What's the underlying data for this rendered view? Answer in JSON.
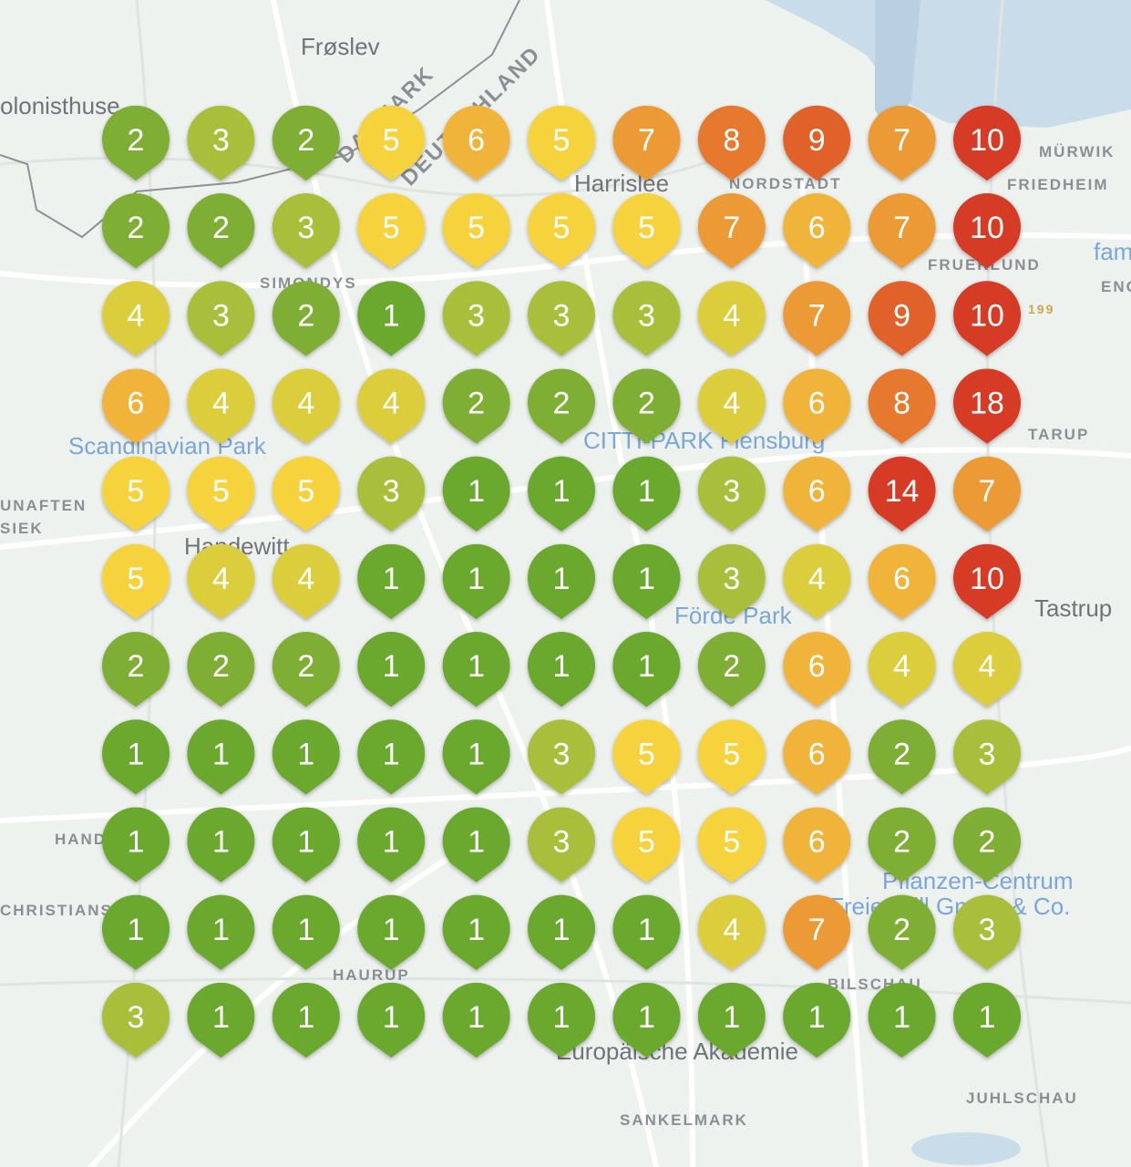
{
  "map_labels": {
    "froslev": "Frøslev",
    "kolonisthuse": "olonisthuse",
    "harrislee": "Harrislee",
    "nordstadt": "NORDSTADT",
    "murwik": "MÜRWIK",
    "friedheim": "FRIEDHEIM",
    "fruerlund": "FRUERLUND",
    "fam": "fam",
    "eng": "ENG",
    "simondys": "SIMONDYS",
    "tarup": "TARUP",
    "scandinavian_park": "Scandinavian Park",
    "citti_park": "CITTI-PARK Flensburg",
    "unaften": "UNAFTEN",
    "siek": "SIEK",
    "handewitt": "Handewitt",
    "forde_park": "Förde Park",
    "tastrup": "Tastrup",
    "hand": "HAND",
    "christians": "CHRISTIANS",
    "haurup": "HAURUP",
    "pflanzen": "Pflanzen-Centrum",
    "freienwill": "Freienwill GmbH & Co.",
    "bilschau": "BILSCHAU",
    "akademie": "Europäische Akademie",
    "juhlschau": "JUHLSCHAU",
    "sankelmark": "SANKELMARK",
    "danmark": "DANMARK",
    "deutschland": "DEUTSCHLAND",
    "road_199": "199"
  },
  "pins": [
    [
      2,
      3,
      2,
      5,
      6,
      5,
      7,
      8,
      9,
      7,
      10
    ],
    [
      2,
      2,
      3,
      5,
      5,
      5,
      5,
      7,
      6,
      7,
      10
    ],
    [
      4,
      3,
      2,
      1,
      3,
      3,
      3,
      4,
      7,
      9,
      10
    ],
    [
      6,
      4,
      4,
      4,
      2,
      2,
      2,
      4,
      6,
      8,
      18
    ],
    [
      5,
      5,
      5,
      3,
      1,
      1,
      1,
      3,
      6,
      14,
      7
    ],
    [
      5,
      4,
      4,
      1,
      1,
      1,
      1,
      3,
      4,
      6,
      10
    ],
    [
      2,
      2,
      2,
      1,
      1,
      1,
      1,
      2,
      6,
      4,
      4
    ],
    [
      1,
      1,
      1,
      1,
      1,
      3,
      5,
      5,
      6,
      2,
      3
    ],
    [
      1,
      1,
      1,
      1,
      1,
      3,
      5,
      5,
      6,
      2,
      2
    ],
    [
      1,
      1,
      1,
      1,
      1,
      1,
      1,
      4,
      7,
      2,
      3
    ],
    [
      3,
      1,
      1,
      1,
      1,
      1,
      1,
      1,
      1,
      1,
      1
    ]
  ]
}
